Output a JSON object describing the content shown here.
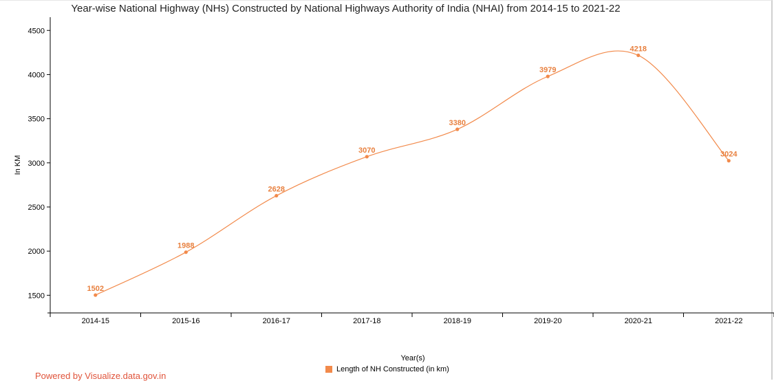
{
  "chart_data": {
    "type": "line",
    "title": "Year-wise National Highway (NHs) Constructed by National Highways Authority of India (NHAI) from 2014-15 to 2021-22",
    "xlabel": "Year(s)",
    "ylabel": "In KM",
    "categories": [
      "2014-15",
      "2015-16",
      "2016-17",
      "2017-18",
      "2018-19",
      "2019-20",
      "2020-21",
      "2021-22"
    ],
    "series": [
      {
        "name": "Length of NH Constructed (in km)",
        "values": [
          1502,
          1988,
          2628,
          3070,
          3380,
          3979,
          4218,
          3024
        ]
      }
    ],
    "yticks": [
      1500,
      2000,
      2500,
      3000,
      3500,
      4000,
      4500
    ],
    "ylim": [
      1300,
      4650
    ],
    "grid": false,
    "legend_position": "bottom-center",
    "data_labels": true,
    "curve": "smooth"
  },
  "colors": {
    "series": "#f28a4b",
    "data_label": "#e8803f"
  },
  "footer": {
    "powered_by": "Powered by Visualize.data.gov.in"
  }
}
